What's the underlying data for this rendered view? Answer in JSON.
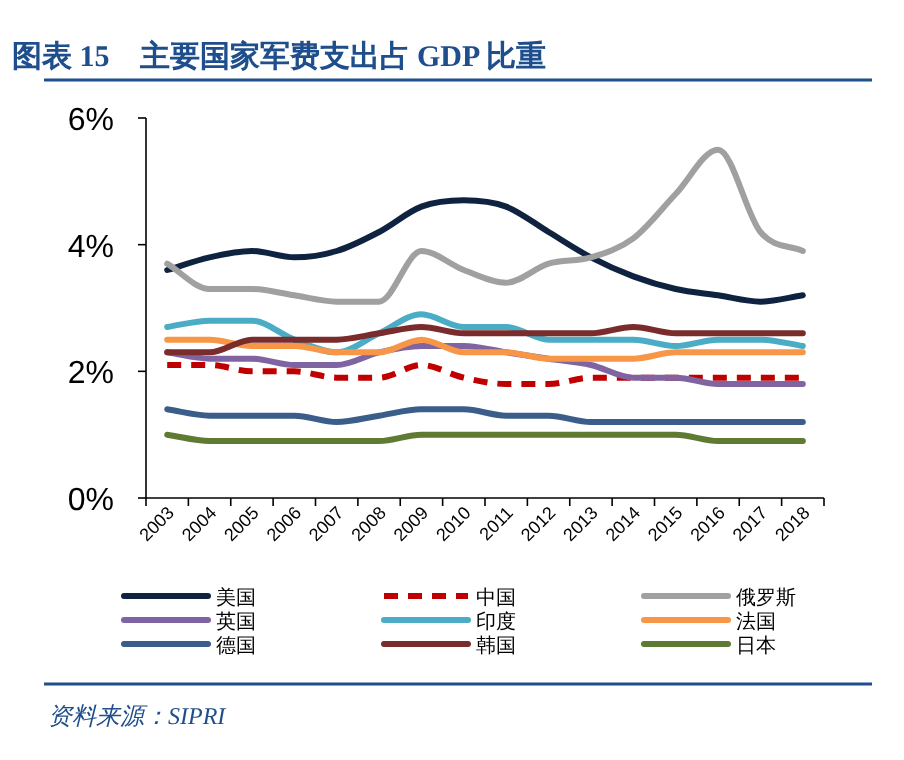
{
  "chart_data": {
    "type": "line",
    "title": "图表 15　主要国家军费支出占 GDP 比重",
    "annotations": [
      "资料来源：SIPRI"
    ],
    "categories": [
      "2003",
      "2004",
      "2005",
      "2006",
      "2007",
      "2008",
      "2009",
      "2010",
      "2011",
      "2012",
      "2013",
      "2014",
      "2015",
      "2016",
      "2017",
      "2018"
    ],
    "ylim": [
      0,
      6
    ],
    "yticks": [
      {
        "value": 0,
        "label": "0%"
      },
      {
        "value": 2,
        "label": "2%"
      },
      {
        "value": 4,
        "label": "4%"
      },
      {
        "value": 6,
        "label": "6%"
      }
    ],
    "grid": false,
    "legend": "bottom",
    "marker": "none",
    "series": [
      {
        "name": "美国",
        "color": "#0f2340",
        "values": [
          3.6,
          3.8,
          3.9,
          3.8,
          3.9,
          4.2,
          4.6,
          4.7,
          4.6,
          4.2,
          3.8,
          3.5,
          3.3,
          3.2,
          3.1,
          3.2
        ]
      },
      {
        "name": "中国",
        "color": "#c00000",
        "line_style": "dashed",
        "values": [
          2.1,
          2.1,
          2.0,
          2.0,
          1.9,
          1.9,
          2.1,
          1.9,
          1.8,
          1.8,
          1.9,
          1.9,
          1.9,
          1.9,
          1.9,
          1.9
        ]
      },
      {
        "name": "俄罗斯",
        "color": "#a0a0a0",
        "values": [
          3.7,
          3.3,
          3.3,
          3.2,
          3.1,
          3.1,
          3.9,
          3.6,
          3.4,
          3.7,
          3.8,
          4.1,
          4.8,
          5.5,
          4.2,
          3.9
        ]
      },
      {
        "name": "英国",
        "color": "#8064a2",
        "values": [
          2.3,
          2.2,
          2.2,
          2.1,
          2.1,
          2.3,
          2.4,
          2.4,
          2.3,
          2.2,
          2.1,
          1.9,
          1.9,
          1.8,
          1.8,
          1.8
        ]
      },
      {
        "name": "印度",
        "color": "#4bacc6",
        "values": [
          2.7,
          2.8,
          2.8,
          2.5,
          2.3,
          2.6,
          2.9,
          2.7,
          2.7,
          2.5,
          2.5,
          2.5,
          2.4,
          2.5,
          2.5,
          2.4
        ]
      },
      {
        "name": "法国",
        "color": "#f79646",
        "values": [
          2.5,
          2.5,
          2.4,
          2.4,
          2.3,
          2.3,
          2.5,
          2.3,
          2.3,
          2.2,
          2.2,
          2.2,
          2.3,
          2.3,
          2.3,
          2.3
        ]
      },
      {
        "name": "德国",
        "color": "#3b5d8a",
        "values": [
          1.4,
          1.3,
          1.3,
          1.3,
          1.2,
          1.3,
          1.4,
          1.4,
          1.3,
          1.3,
          1.2,
          1.2,
          1.2,
          1.2,
          1.2,
          1.2
        ]
      },
      {
        "name": "韩国",
        "color": "#7a2c2c",
        "values": [
          2.3,
          2.3,
          2.5,
          2.5,
          2.5,
          2.6,
          2.7,
          2.6,
          2.6,
          2.6,
          2.6,
          2.7,
          2.6,
          2.6,
          2.6,
          2.6
        ]
      },
      {
        "name": "日本",
        "color": "#5f7a32",
        "values": [
          1.0,
          0.9,
          0.9,
          0.9,
          0.9,
          0.9,
          1.0,
          1.0,
          1.0,
          1.0,
          1.0,
          1.0,
          1.0,
          0.9,
          0.9,
          0.9
        ]
      }
    ]
  }
}
